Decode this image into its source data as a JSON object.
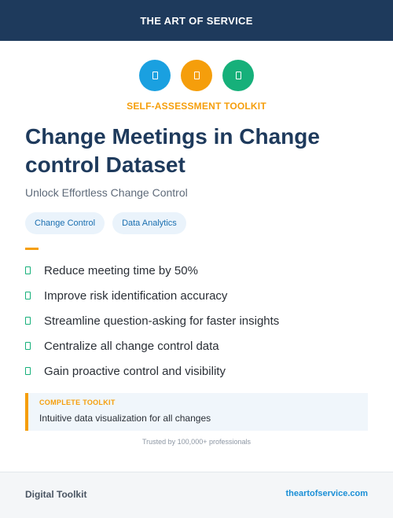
{
  "header": {
    "brand": "THE ART OF SERVICE"
  },
  "colors": {
    "navy": "#1e3a5c",
    "blue": "#1aa0e0",
    "orange": "#f59e0b",
    "green": "#16b07a",
    "accent_text": "#f59e0b"
  },
  "icons": [
    {
      "name": "document-icon",
      "color": "#1aa0e0"
    },
    {
      "name": "document-icon",
      "color": "#f59e0b"
    },
    {
      "name": "document-icon",
      "color": "#16b07a"
    }
  ],
  "kicker": "SELF-ASSESSMENT TOOLKIT",
  "title": "Change Meetings in Change control Dataset",
  "subtitle": "Unlock Effortless Change Control",
  "tags": [
    "Change Control",
    "Data Analytics"
  ],
  "benefits": [
    "Reduce meeting time by 50%",
    "Improve risk identification accuracy",
    "Streamline question-asking for faster insights",
    "Centralize all change control data",
    "Gain proactive control and visibility"
  ],
  "callout": {
    "label": "COMPLETE TOOLKIT",
    "text": "Intuitive data visualization for all changes"
  },
  "trust": "Trusted by 100,000+ professionals",
  "footer": {
    "left": "Digital Toolkit",
    "right": "theartofservice.com"
  }
}
